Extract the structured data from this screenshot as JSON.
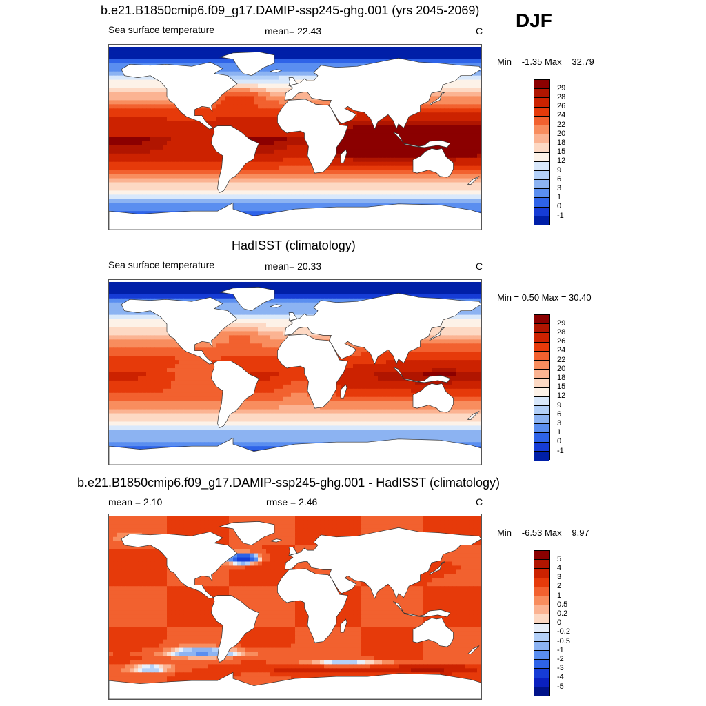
{
  "season": "DJF",
  "panels": [
    {
      "title": "b.e21.B1850cmip6.f09_g17.DAMIP-ssp245-ghg.001 (yrs 2045-2069)",
      "left_label": "Sea surface temperature",
      "center_label": "mean=  22.43",
      "units": "C",
      "minmax": "Min =  -1.35 Max =  32.79",
      "field": "model",
      "colorbar": {
        "labels": [
          "29",
          "28",
          "26",
          "24",
          "22",
          "20",
          "18",
          "15",
          "12",
          "9",
          "6",
          "3",
          "1",
          "0",
          "-1"
        ],
        "colors": [
          "#8b0000",
          "#b01500",
          "#cc2200",
          "#e63a0a",
          "#f2612f",
          "#f88d5e",
          "#fbb392",
          "#fdd9c4",
          "#fdf2e8",
          "#d9e8fb",
          "#b3d0f8",
          "#8cb3f2",
          "#5a8ef0",
          "#2e63e8",
          "#163cd6",
          "#001fa8"
        ]
      },
      "map_image": "global sea surface temperature map, model simulation"
    },
    {
      "title": "HadISST (climatology)",
      "left_label": "Sea surface temperature",
      "center_label": "mean=  20.33",
      "units": "C",
      "minmax": "Min =   0.50 Max =  30.40",
      "field": "obs",
      "colorbar": {
        "labels": [
          "29",
          "28",
          "26",
          "24",
          "22",
          "20",
          "18",
          "15",
          "12",
          "9",
          "6",
          "3",
          "1",
          "0",
          "-1"
        ],
        "colors": [
          "#8b0000",
          "#b01500",
          "#cc2200",
          "#e63a0a",
          "#f2612f",
          "#f88d5e",
          "#fbb392",
          "#fdd9c4",
          "#fdf2e8",
          "#d9e8fb",
          "#b3d0f8",
          "#8cb3f2",
          "#5a8ef0",
          "#2e63e8",
          "#163cd6",
          "#001fa8"
        ]
      },
      "map_image": "global sea surface temperature map, HadISST observations"
    },
    {
      "title": "b.e21.B1850cmip6.f09_g17.DAMIP-ssp245-ghg.001 - HadISST (climatology)",
      "left_label": "mean =   2.10",
      "center_label": "rmse =   2.46",
      "units": "C",
      "minmax": "Min =  -6.53 Max =   9.97",
      "field": "diff",
      "colorbar": {
        "labels": [
          "5",
          "4",
          "3",
          "2",
          "1",
          "0.5",
          "0.2",
          "0",
          "-0.2",
          "-0.5",
          "-1",
          "-2",
          "-3",
          "-4",
          "-5"
        ],
        "colors": [
          "#8b0000",
          "#b01500",
          "#cc2200",
          "#e63a0a",
          "#f2612f",
          "#f88d5e",
          "#fbb392",
          "#fdd9c4",
          "#e8f0fb",
          "#b3d0f8",
          "#8cb3f2",
          "#5a8ef0",
          "#2e63e8",
          "#163cd6",
          "#0a20c0",
          "#00128a"
        ]
      },
      "map_image": "global sea surface temperature difference map, model minus observations"
    }
  ]
}
